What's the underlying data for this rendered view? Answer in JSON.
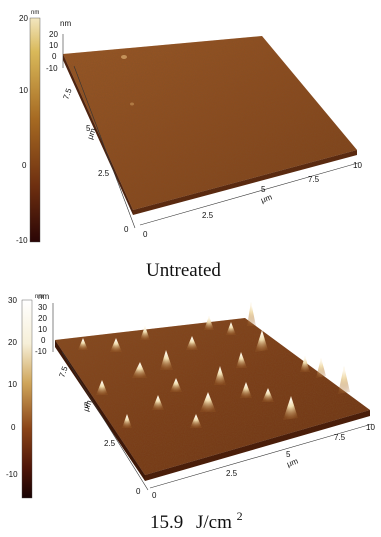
{
  "panels": [
    {
      "caption": "Untreated",
      "colorbar_unit": "nm",
      "colorbar_ticks": [
        "20",
        "10",
        "0",
        "-10"
      ],
      "z_unit": "nm",
      "z_ticks": [
        "20",
        "10",
        "0",
        "-10"
      ],
      "y_unit": "μm",
      "y_ticks": [
        "0",
        "2.5",
        "5",
        "7.5"
      ],
      "x_unit": "μm",
      "x_ticks": [
        "0",
        "2.5",
        "5",
        "7.5",
        "10"
      ]
    },
    {
      "caption_value": "15.9",
      "caption_unit": "J/cm",
      "caption_sup": "2",
      "colorbar_unit": "nm",
      "colorbar_ticks": [
        "30",
        "20",
        "10",
        "0",
        "-10"
      ],
      "z_unit": "nm",
      "z_ticks": [
        "30",
        "20",
        "10",
        "0",
        "-10"
      ],
      "y_unit": "μm",
      "y_ticks": [
        "0",
        "2.5",
        "5",
        "7.5"
      ],
      "x_unit": "μm",
      "x_ticks": [
        "0",
        "2.5",
        "5",
        "7.5",
        "10"
      ]
    }
  ]
}
